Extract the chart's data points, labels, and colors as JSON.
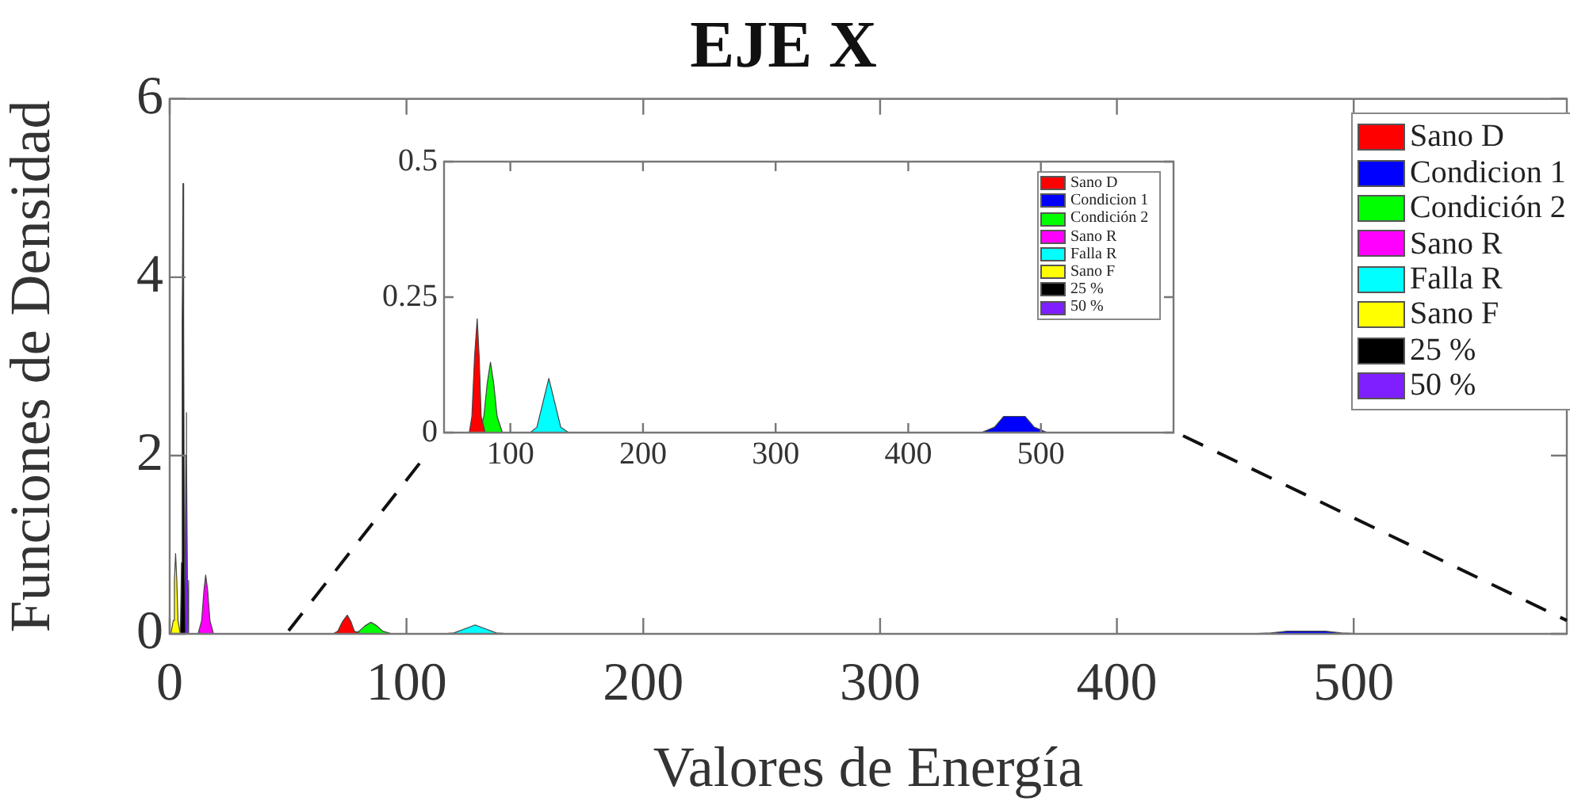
{
  "chart_data": [
    {
      "type": "area",
      "title": "EJE X",
      "xlabel": "Valores de Energía",
      "ylabel": "Funciones de Densidad",
      "xlim": [
        0,
        590
      ],
      "xticks": [
        0,
        100,
        200,
        300,
        400,
        500
      ],
      "ylim": [
        0,
        6
      ],
      "yticks": [
        0,
        2,
        4,
        6
      ],
      "grid": false,
      "legend": "top right",
      "series": [
        {
          "name": "Sano D",
          "color": "#ff0000",
          "x": [
            69,
            71,
            73,
            75,
            76.5,
            78,
            81
          ],
          "values": [
            0,
            0.03,
            0.14,
            0.21,
            0.14,
            0.03,
            0
          ]
        },
        {
          "name": "Condicion 1",
          "color": "#0000ff",
          "x": [
            440,
            455,
            465,
            472,
            480,
            488,
            495,
            505,
            520
          ],
          "values": [
            0,
            0,
            0.01,
            0.03,
            0.03,
            0.03,
            0.01,
            0,
            0
          ]
        },
        {
          "name": "Condición 2",
          "color": "#00ff00",
          "x": [
            77,
            80,
            82.5,
            85,
            87.5,
            90,
            94
          ],
          "values": [
            0,
            0.03,
            0.09,
            0.13,
            0.09,
            0.03,
            0
          ]
        },
        {
          "name": "Sano R",
          "color": "#ff00ff",
          "x": [
            12,
            13.5,
            14.5,
            15.2,
            16,
            17,
            18.5
          ],
          "values": [
            0,
            0.15,
            0.5,
            0.66,
            0.5,
            0.15,
            0
          ]
        },
        {
          "name": "Falla R",
          "color": "#00ffff",
          "x": [
            115,
            120,
            125,
            129,
            133,
            138,
            144
          ],
          "values": [
            0,
            0.01,
            0.06,
            0.1,
            0.06,
            0.01,
            0
          ]
        },
        {
          "name": "Sano F",
          "color": "#ffff00",
          "x": [
            0.5,
            1.5,
            2,
            2.5,
            3,
            3.5,
            4.5
          ],
          "values": [
            0,
            0.15,
            0.6,
            0.9,
            0.6,
            0.15,
            0
          ]
        },
        {
          "name": "25 %",
          "color": "#000000",
          "x": [
            4.5,
            5,
            5.3,
            5.6,
            5.9,
            6.2,
            6.7
          ],
          "values": [
            0,
            0.8,
            3.5,
            5.05,
            3.5,
            0.8,
            0
          ]
        },
        {
          "name": "50 %",
          "color": "#7f1fff",
          "x": [
            6,
            6.5,
            6.8,
            7,
            7.2,
            7.5,
            8
          ],
          "values": [
            0,
            0.6,
            2,
            2.48,
            2,
            0.6,
            0
          ]
        }
      ]
    },
    {
      "type": "area",
      "xlim": [
        50,
        600
      ],
      "xticks": [
        100,
        200,
        300,
        400,
        500
      ],
      "ylim": [
        0,
        0.5
      ],
      "yticks": [
        0,
        0.25,
        0.5
      ],
      "grid": false,
      "legend": "top right",
      "series": [
        {
          "name": "Sano D",
          "color": "#ff0000",
          "x": [
            69,
            71,
            73,
            75,
            76.5,
            78,
            81
          ],
          "values": [
            0,
            0.03,
            0.14,
            0.21,
            0.14,
            0.03,
            0
          ]
        },
        {
          "name": "Condicion 1",
          "color": "#0000ff",
          "x": [
            440,
            455,
            465,
            472,
            480,
            488,
            495,
            505,
            520
          ],
          "values": [
            0,
            0,
            0.01,
            0.03,
            0.03,
            0.03,
            0.01,
            0,
            0
          ]
        },
        {
          "name": "Condición 2",
          "color": "#00ff00",
          "x": [
            77,
            80,
            82.5,
            85,
            87.5,
            90,
            94
          ],
          "values": [
            0,
            0.03,
            0.09,
            0.13,
            0.09,
            0.03,
            0
          ]
        },
        {
          "name": "Sano R",
          "color": "#ff00ff"
        },
        {
          "name": "Falla R",
          "color": "#00ffff",
          "x": [
            115,
            120,
            125,
            129,
            133,
            138,
            144
          ],
          "values": [
            0,
            0.01,
            0.06,
            0.1,
            0.06,
            0.01,
            0
          ]
        },
        {
          "name": "Sano F",
          "color": "#ffff00"
        },
        {
          "name": "25 %",
          "color": "#000000"
        },
        {
          "name": "50 %",
          "color": "#7f1fff"
        }
      ]
    }
  ]
}
